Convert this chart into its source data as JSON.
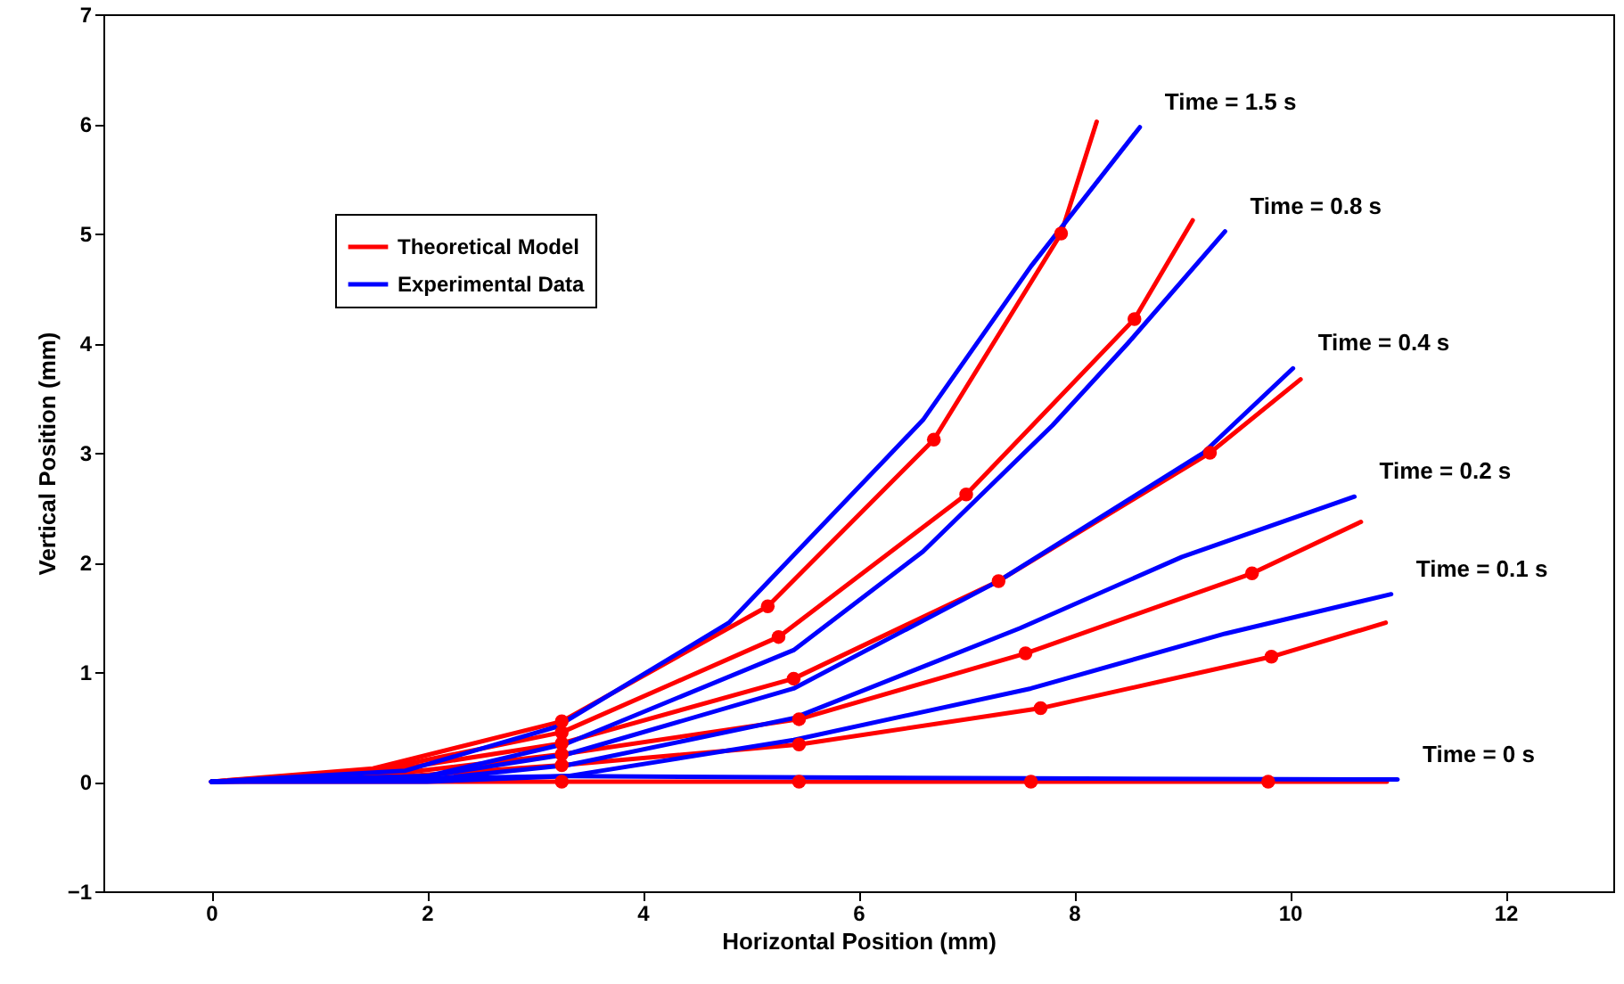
{
  "chart_data": {
    "type": "line",
    "xlabel": "Horizontal Position (mm)",
    "ylabel": "Vertical Position (mm)",
    "xlim": [
      -1,
      13
    ],
    "ylim": [
      -1,
      7
    ],
    "xticks": [
      0,
      2,
      4,
      6,
      8,
      10,
      12
    ],
    "yticks": [
      -1,
      0,
      1,
      2,
      3,
      4,
      5,
      6,
      7
    ],
    "legend": "top left",
    "line_style": "solid",
    "series": [
      {
        "name": "Theoretical Model",
        "color": "#ff0000",
        "x": [
          0,
          1.5,
          3.25,
          5.16,
          6.7,
          7.88,
          8.21
        ],
        "values": [
          0,
          0.12,
          0.55,
          1.6,
          3.12,
          5.0,
          6.02
        ]
      },
      {
        "color": "#ff0000",
        "x": [
          0,
          1.5,
          3.25,
          5.26,
          7.0,
          8.56,
          9.1
        ],
        "values": [
          0,
          0.1,
          0.45,
          1.32,
          2.62,
          4.22,
          5.12
        ]
      },
      {
        "color": "#ff0000",
        "x": [
          0,
          1.5,
          3.25,
          5.4,
          7.3,
          9.26,
          10.1
        ],
        "values": [
          0,
          0.08,
          0.35,
          0.94,
          1.83,
          3.0,
          3.67
        ]
      },
      {
        "color": "#ff0000",
        "x": [
          0,
          1.5,
          3.25,
          5.45,
          7.55,
          9.65,
          10.66
        ],
        "values": [
          0,
          0.05,
          0.25,
          0.57,
          1.17,
          1.9,
          2.37
        ]
      },
      {
        "color": "#ff0000",
        "x": [
          0,
          1.5,
          3.25,
          5.45,
          7.69,
          9.83,
          10.89
        ],
        "values": [
          0,
          0.03,
          0.15,
          0.34,
          0.67,
          1.14,
          1.45
        ]
      },
      {
        "color": "#ff0000",
        "x": [
          0,
          3.25,
          5.45,
          7.6,
          9.8,
          10.9
        ],
        "values": [
          0,
          0,
          0,
          0,
          0,
          0
        ]
      },
      {
        "name": "Experimental Data",
        "color": "#0000ff",
        "x": [
          0,
          1.8,
          3.2,
          4.8,
          6.6,
          7.6,
          8.61
        ],
        "values": [
          0,
          0.1,
          0.5,
          1.45,
          3.3,
          4.7,
          5.97
        ]
      },
      {
        "color": "#0000ff",
        "x": [
          0,
          2,
          3.3,
          5.4,
          6.6,
          7.8,
          8.5,
          9.4
        ],
        "values": [
          0,
          0.05,
          0.35,
          1.2,
          2.1,
          3.25,
          4.0,
          5.02
        ]
      },
      {
        "color": "#0000ff",
        "x": [
          0,
          2,
          3.3,
          5.4,
          7.3,
          9.2,
          10.03
        ],
        "values": [
          0,
          0.05,
          0.25,
          0.85,
          1.83,
          3.0,
          3.77
        ]
      },
      {
        "color": "#0000ff",
        "x": [
          0,
          2,
          3.3,
          5.4,
          7.5,
          9.0,
          10.6
        ],
        "values": [
          0,
          0.02,
          0.15,
          0.58,
          1.4,
          2.05,
          2.6
        ]
      },
      {
        "color": "#0000ff",
        "x": [
          0,
          2,
          3.3,
          5.4,
          7.6,
          9.4,
          10.94
        ],
        "values": [
          0,
          0,
          0.05,
          0.38,
          0.85,
          1.35,
          1.71
        ]
      },
      {
        "color": "#0000ff",
        "x": [
          0,
          3.3,
          7.6,
          11.0
        ],
        "values": [
          0,
          0.05,
          0.03,
          0.02
        ]
      },
      {
        "type": "scatter",
        "marker": "circle",
        "color": "#ff0000",
        "x": [
          3.25,
          5.16,
          6.7,
          7.88,
          3.25,
          5.26,
          7.0,
          8.56,
          3.25,
          5.4,
          7.3,
          9.26,
          3.25,
          5.45,
          7.55,
          9.65,
          3.25,
          5.45,
          7.69,
          9.83,
          3.25,
          5.45,
          7.6,
          9.8
        ],
        "values": [
          0.55,
          1.6,
          3.12,
          5.0,
          0.45,
          1.32,
          2.62,
          4.22,
          0.35,
          0.94,
          1.83,
          3.0,
          0.25,
          0.57,
          1.17,
          1.9,
          0.15,
          0.34,
          0.67,
          1.14,
          0,
          0,
          0,
          0
        ]
      }
    ],
    "annotations": [
      "Time = 1.5  s",
      "Time = 0.8  s",
      "Time = 0.4  s",
      "Time = 0.2  s",
      "Time = 0.1  s",
      "Time = 0  s"
    ]
  }
}
